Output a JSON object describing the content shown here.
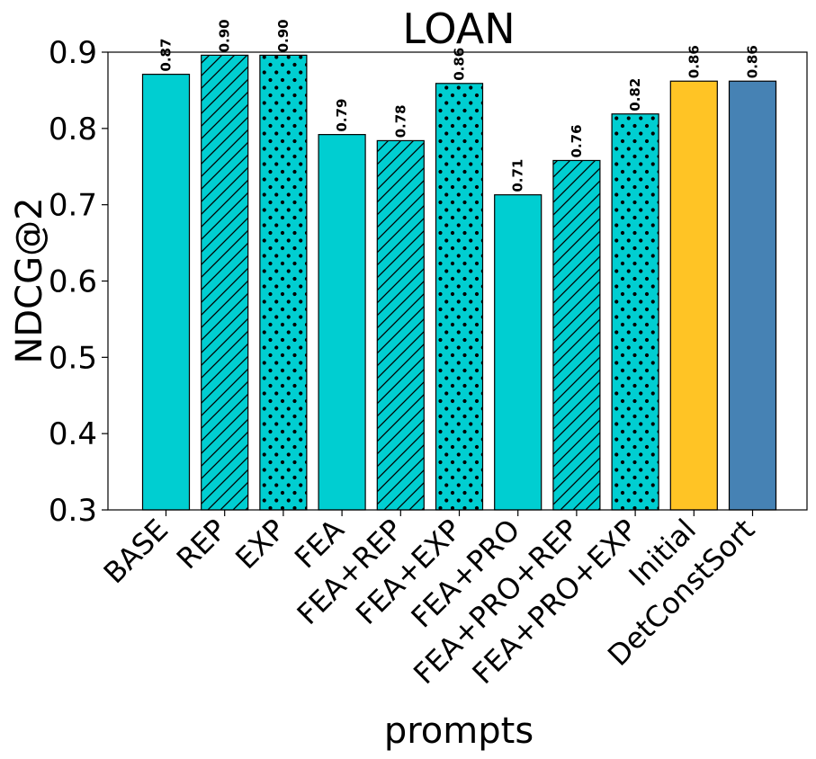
{
  "chart_data": {
    "type": "bar",
    "title": "LOAN",
    "xlabel": "prompts",
    "ylabel": "NDCG@2",
    "ylim": [
      0.3,
      0.9
    ],
    "yticks": [
      "0.3",
      "0.4",
      "0.5",
      "0.6",
      "0.7",
      "0.8",
      "0.9"
    ],
    "grid": false,
    "categories": [
      "BASE",
      "REP",
      "EXP",
      "FEA",
      "FEA+REP",
      "FEA+EXP",
      "FEA+PRO",
      "FEA+PRO+REP",
      "FEA+PRO+EXP",
      "Initial",
      "DetConstSort"
    ],
    "values": [
      0.871,
      0.896,
      0.896,
      0.792,
      0.784,
      0.859,
      0.713,
      0.758,
      0.819,
      0.862,
      0.862
    ],
    "labels": [
      "0.87",
      "0.90",
      "0.90",
      "0.79",
      "0.78",
      "0.86",
      "0.71",
      "0.76",
      "0.82",
      "0.86",
      "0.86"
    ],
    "patterns": [
      "solid",
      "hatch",
      "dots",
      "solid",
      "hatch",
      "dots",
      "solid",
      "hatch",
      "dots",
      "solid",
      "solid"
    ],
    "colors": [
      "#00CED1",
      "#00CED1",
      "#00CED1",
      "#00CED1",
      "#00CED1",
      "#00CED1",
      "#00CED1",
      "#00CED1",
      "#00CED1",
      "#FFC425",
      "#4682B4"
    ]
  }
}
